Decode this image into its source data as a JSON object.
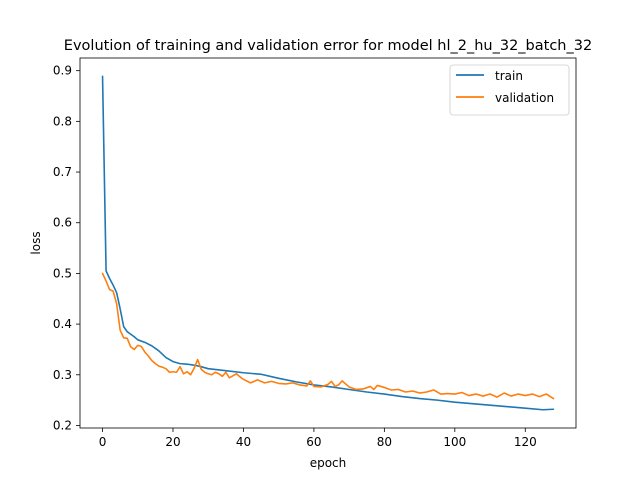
{
  "chart_data": {
    "type": "line",
    "title": "Evolution of training and validation error for model hl_2_hu_32_batch_32",
    "xlabel": "epoch",
    "ylabel": "loss",
    "xlim": [
      -6.4,
      134.4
    ],
    "ylim": [
      0.195,
      0.925
    ],
    "xticks": [
      0,
      20,
      40,
      60,
      80,
      100,
      120
    ],
    "yticks": [
      0.2,
      0.3,
      0.4,
      0.5,
      0.6,
      0.7,
      0.8,
      0.9
    ],
    "xtick_labels": [
      "0",
      "20",
      "40",
      "60",
      "80",
      "100",
      "120"
    ],
    "ytick_labels": [
      "0.2",
      "0.3",
      "0.4",
      "0.5",
      "0.6",
      "0.7",
      "0.8",
      "0.9"
    ],
    "grid": false,
    "legend": {
      "position": "top-right"
    },
    "series": [
      {
        "name": "train",
        "color": "#1f77b4",
        "x": [
          0,
          1,
          2,
          3,
          4,
          5,
          6,
          7,
          8,
          9,
          10,
          12,
          14,
          16,
          18,
          20,
          22,
          24,
          26,
          28,
          30,
          35,
          40,
          45,
          50,
          55,
          60,
          65,
          70,
          75,
          80,
          85,
          90,
          95,
          100,
          105,
          110,
          115,
          120,
          125,
          128
        ],
        "y": [
          0.889,
          0.505,
          0.49,
          0.477,
          0.462,
          0.43,
          0.395,
          0.385,
          0.38,
          0.375,
          0.369,
          0.364,
          0.357,
          0.347,
          0.334,
          0.326,
          0.322,
          0.321,
          0.319,
          0.316,
          0.312,
          0.308,
          0.304,
          0.301,
          0.293,
          0.286,
          0.28,
          0.276,
          0.271,
          0.266,
          0.262,
          0.257,
          0.253,
          0.25,
          0.246,
          0.243,
          0.24,
          0.237,
          0.234,
          0.231,
          0.232
        ]
      },
      {
        "name": "validation",
        "color": "#ff7f0e",
        "x": [
          0,
          1,
          2,
          3,
          4,
          5,
          6,
          7,
          8,
          9,
          10,
          11,
          12,
          13,
          14,
          15,
          16,
          17,
          18,
          19,
          20,
          21,
          22,
          23,
          24,
          25,
          26,
          27,
          28,
          29,
          30,
          31,
          32,
          33,
          34,
          35,
          36,
          37,
          38,
          39,
          40,
          42,
          44,
          46,
          48,
          50,
          52,
          54,
          56,
          58,
          59,
          60,
          62,
          64,
          65,
          66,
          67,
          68,
          70,
          72,
          74,
          76,
          77,
          78,
          80,
          82,
          84,
          86,
          88,
          90,
          92,
          94,
          96,
          98,
          100,
          102,
          104,
          106,
          108,
          110,
          112,
          114,
          116,
          118,
          120,
          122,
          124,
          126,
          128
        ],
        "y": [
          0.5,
          0.485,
          0.468,
          0.465,
          0.44,
          0.388,
          0.373,
          0.372,
          0.355,
          0.35,
          0.358,
          0.356,
          0.345,
          0.337,
          0.328,
          0.322,
          0.317,
          0.315,
          0.312,
          0.305,
          0.306,
          0.305,
          0.316,
          0.302,
          0.306,
          0.3,
          0.313,
          0.33,
          0.311,
          0.305,
          0.302,
          0.3,
          0.305,
          0.302,
          0.297,
          0.305,
          0.294,
          0.298,
          0.302,
          0.296,
          0.291,
          0.284,
          0.29,
          0.284,
          0.287,
          0.283,
          0.282,
          0.284,
          0.28,
          0.278,
          0.288,
          0.277,
          0.276,
          0.281,
          0.287,
          0.277,
          0.28,
          0.288,
          0.276,
          0.271,
          0.272,
          0.277,
          0.271,
          0.279,
          0.275,
          0.27,
          0.271,
          0.266,
          0.268,
          0.264,
          0.266,
          0.27,
          0.262,
          0.263,
          0.262,
          0.265,
          0.259,
          0.262,
          0.258,
          0.262,
          0.256,
          0.264,
          0.258,
          0.262,
          0.259,
          0.262,
          0.257,
          0.262,
          0.253
        ]
      }
    ]
  }
}
